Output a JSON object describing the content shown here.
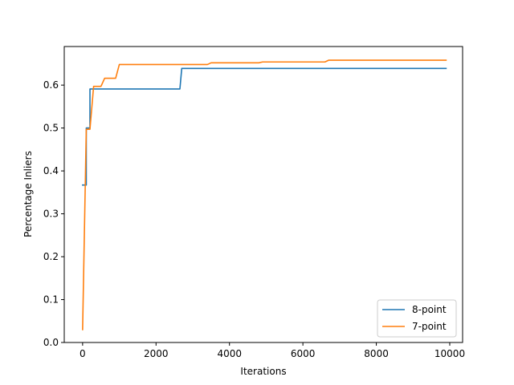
{
  "chart_data": {
    "type": "line",
    "title": "",
    "xlabel": "Iterations",
    "ylabel": "Percentage Inliers",
    "xlim": [
      -500,
      10350
    ],
    "ylim": [
      0,
      0.69
    ],
    "xticks": [
      0,
      2000,
      4000,
      6000,
      8000,
      10000
    ],
    "xtick_labels": [
      "0",
      "2000",
      "4000",
      "6000",
      "8000",
      "10000"
    ],
    "yticks": [
      0,
      0.1,
      0.2,
      0.3,
      0.4,
      0.5,
      0.6
    ],
    "ytick_labels": [
      "0.0",
      "0.1",
      "0.2",
      "0.3",
      "0.4",
      "0.5",
      "0.6"
    ],
    "grid": false,
    "legend_position": "lower-right",
    "series": [
      {
        "name": "8-point",
        "color": "#1f77b4",
        "x": [
          0,
          100,
          100,
          200,
          200,
          2650,
          2700,
          9900
        ],
        "y": [
          0.367,
          0.367,
          0.5,
          0.5,
          0.591,
          0.591,
          0.639,
          0.639
        ]
      },
      {
        "name": "7-point",
        "color": "#ff7f0e",
        "x": [
          0,
          100,
          200,
          300,
          500,
          600,
          900,
          1000,
          3400,
          3500,
          4800,
          4900,
          6600,
          6700,
          9900
        ],
        "y": [
          0.03,
          0.497,
          0.497,
          0.597,
          0.597,
          0.616,
          0.616,
          0.648,
          0.648,
          0.652,
          0.652,
          0.654,
          0.654,
          0.658,
          0.658
        ]
      }
    ]
  }
}
